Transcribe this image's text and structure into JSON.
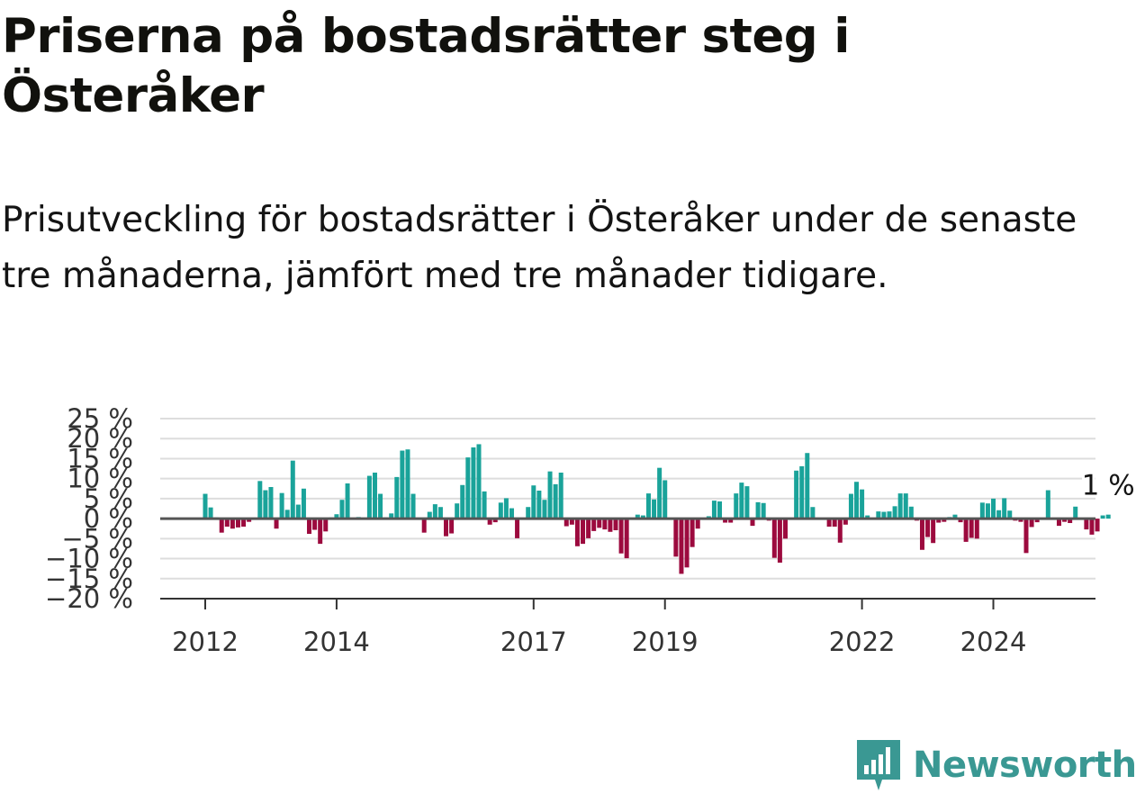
{
  "title": "Priserna på bostadsrätter steg i Österåker",
  "subtitle": "Prisutveckling för bostadsrätter i Österåker under de senaste tre månaderna, jämfört med tre månader tidigare.",
  "logo": {
    "text": "Newsworthy",
    "icon": "bar-chart-badge-icon",
    "color": "#3a9893"
  },
  "chart_data": {
    "type": "bar",
    "title": "",
    "xlabel": "",
    "ylabel": "",
    "ylim": [
      -20,
      25
    ],
    "yticks": [
      25,
      20,
      15,
      10,
      5,
      0,
      -5,
      -10,
      -15,
      -20
    ],
    "ytick_labels": [
      "25 %",
      "20 %",
      "15 %",
      "10 %",
      "5 %",
      "0 %",
      "−5 %",
      "−10 %",
      "−15 %",
      "−20 %"
    ],
    "xticks": [
      "2012",
      "2014",
      "2017",
      "2019",
      "2022",
      "2024"
    ],
    "grid": true,
    "colors": {
      "positive": "#1aa39a",
      "negative": "#9c0a3e",
      "zero_line": "#555555",
      "grid": "#dddddd"
    },
    "annotation": {
      "text": "1 %",
      "value": 1
    },
    "series": [
      {
        "values": [
          6.2,
          2.8,
          0.3,
          -3.5,
          -2.0,
          -2.5,
          -2.2,
          -2.0,
          -0.8,
          0.2,
          9.4,
          7.1,
          7.9,
          -2.5,
          6.4,
          2.2,
          14.5,
          3.5,
          7.5,
          -3.8,
          -2.8,
          -6.3,
          -3.2,
          0.3,
          1.1,
          4.7,
          8.8,
          0.2,
          0.4,
          0.1,
          10.7,
          11.5,
          6.2,
          0.3,
          1.3,
          10.4,
          17.0,
          17.3,
          6.2,
          0.1,
          -3.5,
          1.7,
          3.6,
          2.9,
          -4.4,
          -3.7,
          3.8,
          8.4,
          15.3,
          17.8,
          18.6,
          6.8,
          -1.5,
          -0.9,
          4.0,
          5.1,
          2.6,
          -4.9,
          0.1,
          2.9,
          8.3,
          7.0,
          4.7,
          11.8,
          8.6,
          11.5,
          -1.9,
          -1.5,
          -6.9,
          -6.3,
          -4.9,
          -3.1,
          -2.3,
          -2.7,
          -3.3,
          -2.9,
          -8.7,
          -9.9,
          0.2,
          1.0,
          0.8,
          6.3,
          4.8,
          12.7,
          9.6,
          -0.2,
          -9.5,
          -13.8,
          -12.2,
          -7.1,
          -2.5,
          0.2,
          0.6,
          4.5,
          4.3,
          -1.0,
          -1.0,
          6.3,
          9.0,
          8.1,
          -1.8,
          4.1,
          3.9,
          -0.5,
          -9.8,
          -11.0,
          -5.0,
          0.2,
          12.0,
          13.1,
          16.4,
          2.9,
          -0.1,
          -0.2,
          -2.0,
          -2.0,
          -6.0,
          -1.5,
          6.2,
          9.2,
          7.3,
          0.8,
          0.2,
          1.8,
          1.7,
          1.8,
          3.1,
          6.3,
          6.3,
          3.0,
          -0.5,
          -7.8,
          -4.6,
          -6.1,
          -1.0,
          -0.8,
          0.4,
          1.0,
          -0.9,
          -5.8,
          -4.8,
          -5.0,
          4.0,
          3.8,
          5.0,
          2.1,
          5.1,
          2.0,
          -0.5,
          -0.8,
          -8.6,
          -2.1,
          -0.9,
          0.2,
          7.1,
          0.1,
          -1.8,
          -0.8,
          -1.1,
          3.0,
          -0.2,
          -2.7,
          -4.0,
          -3.2,
          0.8,
          1.0
        ]
      }
    ]
  }
}
